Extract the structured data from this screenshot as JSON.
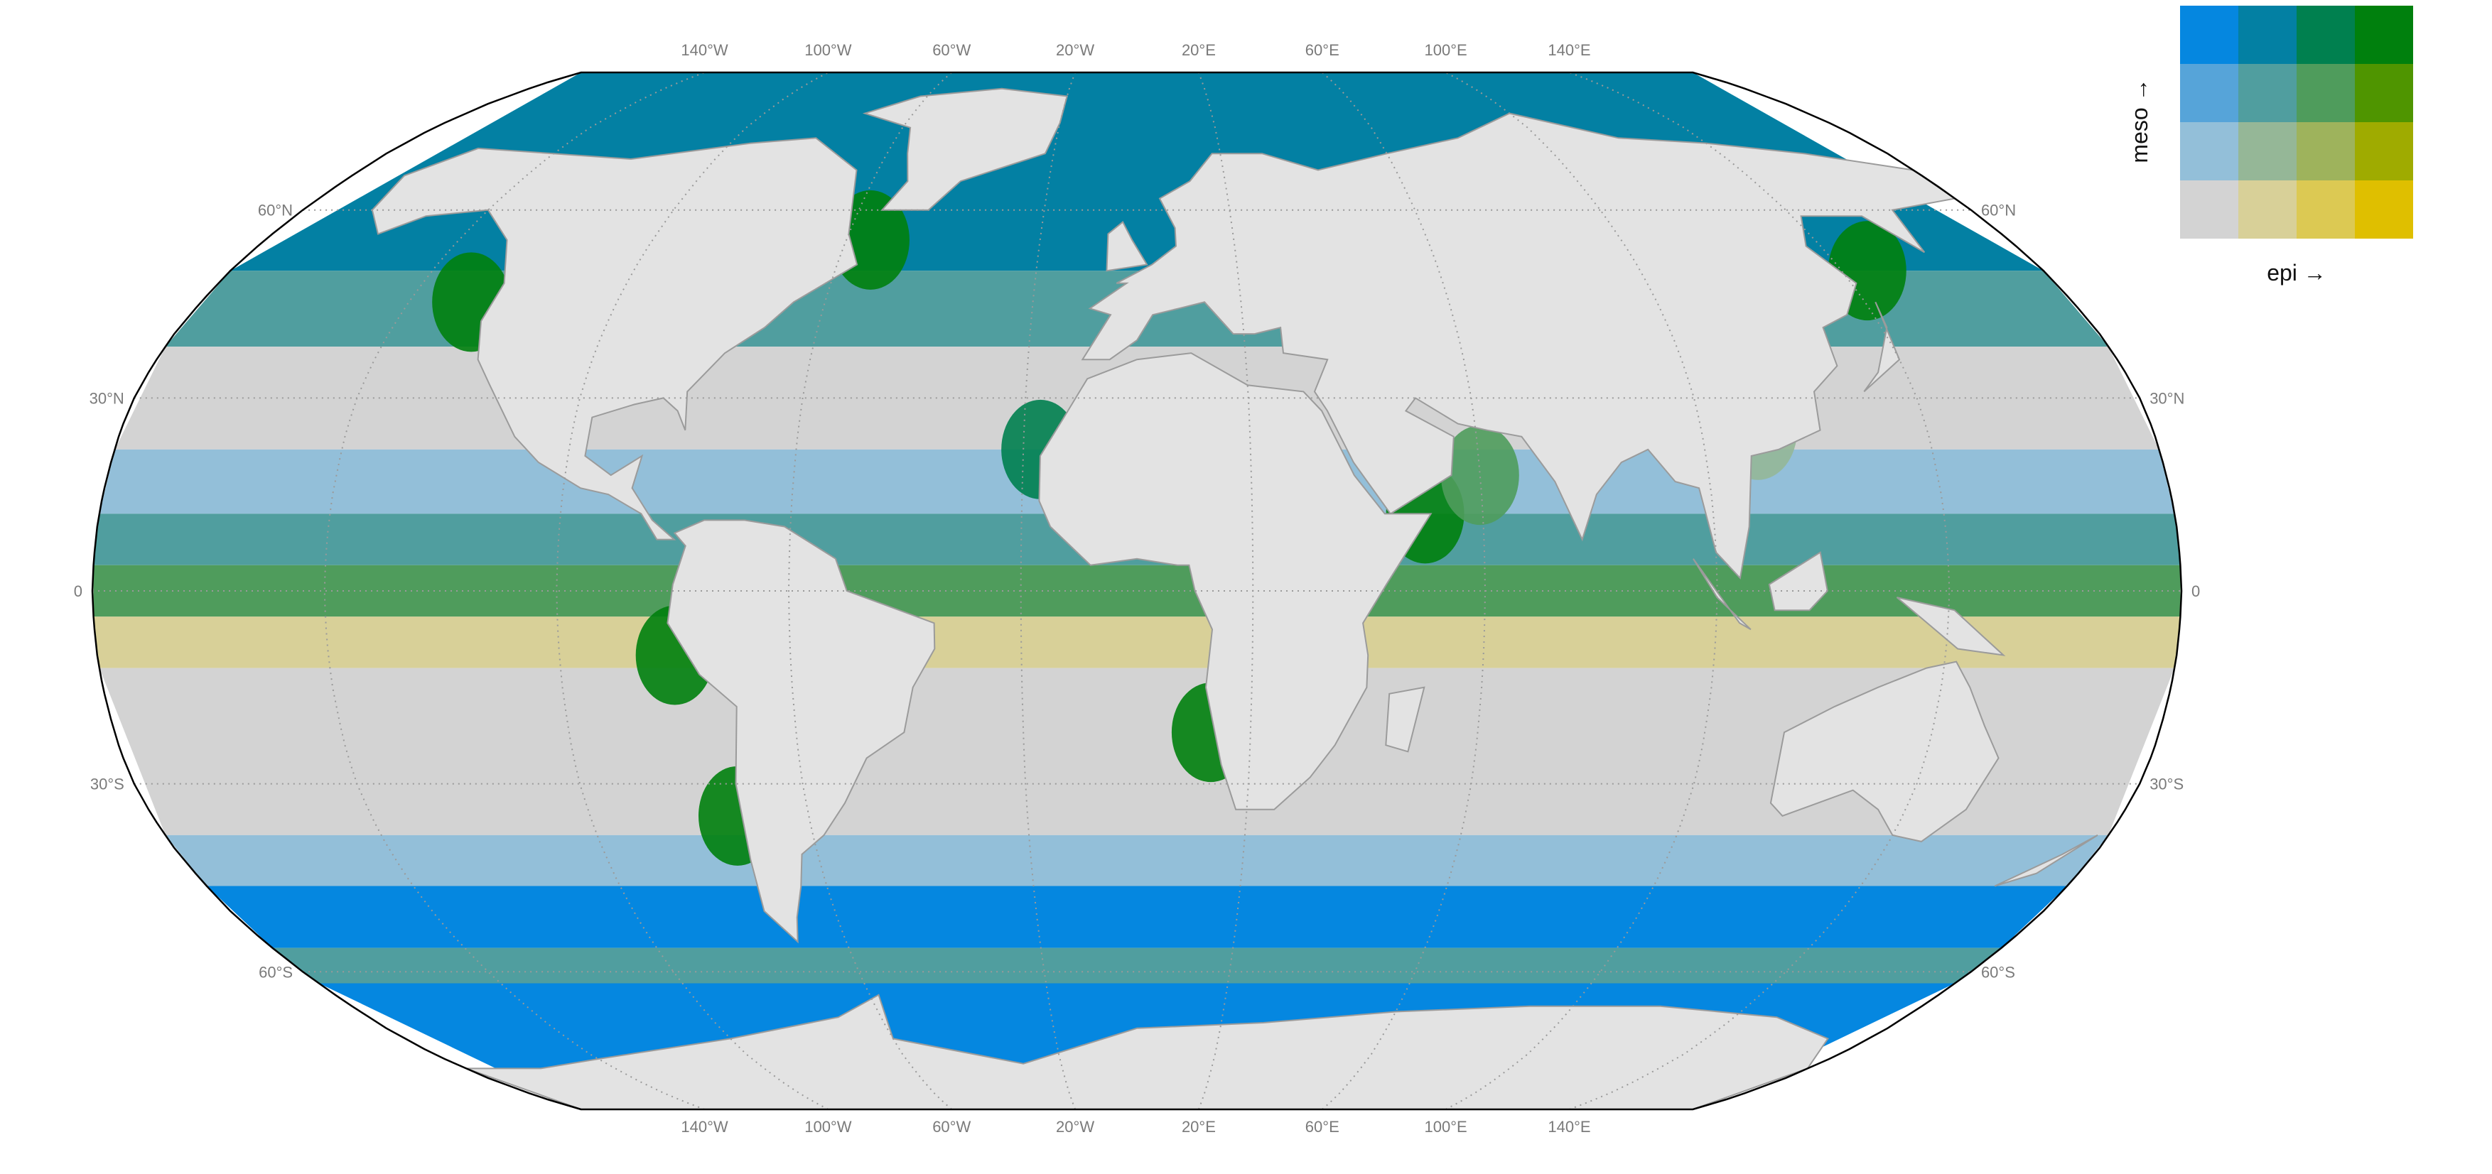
{
  "map": {
    "projection": "robinson",
    "graticule": {
      "top_lon_labels": [
        "140°W",
        "100°W",
        "60°W",
        "20°W",
        "20°E",
        "60°E",
        "100°E",
        "140°E"
      ],
      "bottom_lon_labels": [
        "140°W",
        "100°W",
        "60°W",
        "20°W",
        "20°E",
        "60°E",
        "100°E",
        "140°E"
      ],
      "left_lat_labels": [
        "60°N",
        "30°N",
        "0",
        "30°S",
        "60°S"
      ],
      "right_lat_labels": [
        "60°N",
        "30°N",
        "0",
        "30°S",
        "60°S"
      ],
      "line_style": "dotted",
      "line_color": "#9a9a9a"
    },
    "colors": {
      "land": "#e3e3e3",
      "coast_stroke": "#9b9b9b",
      "ocean_gap": "#ffffff",
      "outline": "#000000"
    },
    "ocean_bands": [
      {
        "lat_from": 90,
        "lat_to": 50,
        "class": "3_1"
      },
      {
        "lat_from": 50,
        "lat_to": 38,
        "class": "2_1"
      },
      {
        "lat_from": 38,
        "lat_to": 22,
        "class": "0_0"
      },
      {
        "lat_from": 22,
        "lat_to": 12,
        "class": "1_0"
      },
      {
        "lat_from": 12,
        "lat_to": 4,
        "class": "2_1"
      },
      {
        "lat_from": 4,
        "lat_to": -4,
        "class": "2_2"
      },
      {
        "lat_from": -4,
        "lat_to": -12,
        "class": "0_1"
      },
      {
        "lat_from": -12,
        "lat_to": -38,
        "class": "0_0"
      },
      {
        "lat_from": -38,
        "lat_to": -46,
        "class": "1_0"
      },
      {
        "lat_from": -46,
        "lat_to": -56,
        "class": "3_0"
      },
      {
        "lat_from": -56,
        "lat_to": -62,
        "class": "2_1"
      },
      {
        "lat_from": -62,
        "lat_to": -90,
        "class": "3_0"
      }
    ],
    "coastal_hotspots": [
      {
        "lon": -80,
        "lat": -10,
        "class": "3_3"
      },
      {
        "lon": -73,
        "lat": -35,
        "class": "3_3"
      },
      {
        "lon": 13,
        "lat": -22,
        "class": "3_3"
      },
      {
        "lon": -17,
        "lat": 22,
        "class": "3_2"
      },
      {
        "lon": -55,
        "lat": 55,
        "class": "3_3"
      },
      {
        "lon": 145,
        "lat": 50,
        "class": "3_3"
      },
      {
        "lon": 50,
        "lat": 12,
        "class": "3_3"
      },
      {
        "lon": -128,
        "lat": 45,
        "class": "3_3"
      },
      {
        "lon": 60,
        "lat": 18,
        "class": "2_2"
      },
      {
        "lon": 110,
        "lat": 25,
        "class": "1_1"
      }
    ]
  },
  "legend": {
    "x_label": "epi →",
    "y_label": "meso →",
    "grid_rows": [
      [
        "#0587e0",
        "#0380a3",
        "#00804f",
        "#00800d"
      ],
      [
        "#56a4d9",
        "#509e9f",
        "#4f9c5c",
        "#4f9500"
      ],
      [
        "#93bfd9",
        "#95b797",
        "#9eb35c",
        "#9fab00"
      ],
      [
        "#d3d3d3",
        "#d8d098",
        "#dcc953",
        "#dfbf00"
      ]
    ]
  }
}
